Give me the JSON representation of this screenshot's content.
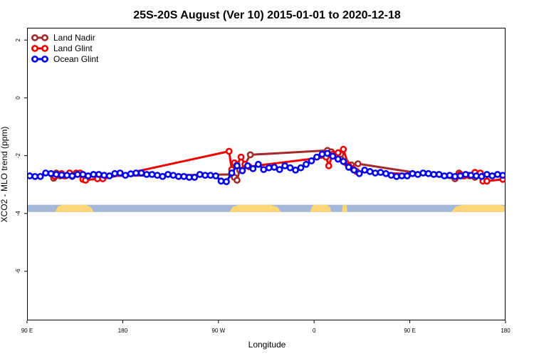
{
  "chart_data": {
    "type": "line",
    "title": "25S-20S August (Ver 10)   2015-01-01 to 2020-12-18",
    "xlabel": "Longitude",
    "ylabel": "XCO2 - MLO trend (ppm)",
    "xlim": [
      90,
      450
    ],
    "ylim": [
      -7.7,
      2.4
    ],
    "x_ticks": [
      {
        "value": 90,
        "label": "90 E"
      },
      {
        "value": 162,
        "label": "180"
      },
      {
        "value": 234,
        "label": "90 W"
      },
      {
        "value": 306,
        "label": "0"
      },
      {
        "value": 378,
        "label": "90 E"
      },
      {
        "value": 450,
        "label": "180"
      }
    ],
    "y_ticks": [
      {
        "value": 2,
        "label": "2"
      },
      {
        "value": 0,
        "label": "0"
      },
      {
        "value": -2,
        "label": "-2"
      },
      {
        "value": -4,
        "label": "-4"
      },
      {
        "value": -6,
        "label": "-6"
      }
    ],
    "grid": false,
    "legend_position": "top-left",
    "land_band": {
      "y_range": [
        -3.95,
        -3.7
      ],
      "ocean_color": "#a3b8d8",
      "land_color": "#ffd675",
      "land_segments": [
        [
          111,
          140
        ],
        [
          242,
          281
        ],
        [
          303,
          319
        ],
        [
          327,
          331
        ],
        [
          409,
          455
        ]
      ]
    },
    "series": [
      {
        "name": "Land Nadir",
        "color": "#a52a2a",
        "points": [
          [
            110,
            -2.78
          ],
          [
            112,
            -2.6
          ],
          [
            115,
            -2.7
          ],
          [
            118,
            -2.7
          ],
          [
            124,
            -2.72
          ],
          [
            244,
            -2.65
          ],
          [
            246,
            -2.75
          ],
          [
            248,
            -2.85
          ],
          [
            250,
            -2.5
          ],
          [
            254,
            -2.3
          ],
          [
            258,
            -1.97
          ],
          [
            316,
            -1.82
          ],
          [
            319,
            -1.87
          ],
          [
            323,
            -2.02
          ],
          [
            326,
            -1.95
          ],
          [
            330,
            -2.25
          ],
          [
            334,
            -2.32
          ],
          [
            339,
            -2.28
          ],
          [
            412,
            -2.8
          ],
          [
            415,
            -2.6
          ],
          [
            418,
            -2.7
          ],
          [
            422,
            -2.68
          ],
          [
            427,
            -2.75
          ]
        ]
      },
      {
        "name": "Land Glint",
        "color": "#ee0000",
        "points": [
          [
            111,
            -2.72
          ],
          [
            113,
            -2.67
          ],
          [
            116,
            -2.62
          ],
          [
            119,
            -2.7
          ],
          [
            122,
            -2.6
          ],
          [
            127,
            -2.6
          ],
          [
            130,
            -2.6
          ],
          [
            132,
            -2.82
          ],
          [
            134,
            -2.85
          ],
          [
            143,
            -2.8
          ],
          [
            147,
            -2.8
          ],
          [
            242,
            -1.85
          ],
          [
            244,
            -2.48
          ],
          [
            246,
            -2.25
          ],
          [
            248,
            -2.32
          ],
          [
            251,
            -2.05
          ],
          [
            254,
            -2.3
          ],
          [
            257,
            -2.38
          ],
          [
            315,
            -2.05
          ],
          [
            317,
            -2.35
          ],
          [
            320,
            -1.95
          ],
          [
            324,
            -1.9
          ],
          [
            328,
            -1.78
          ],
          [
            332,
            -2.35
          ],
          [
            335,
            -2.45
          ],
          [
            338,
            -2.55
          ],
          [
            413,
            -2.72
          ],
          [
            416,
            -2.65
          ],
          [
            419,
            -2.7
          ],
          [
            423,
            -2.7
          ],
          [
            427,
            -2.58
          ],
          [
            431,
            -2.6
          ],
          [
            433,
            -2.88
          ],
          [
            436,
            -2.88
          ],
          [
            448,
            -2.82
          ]
        ]
      },
      {
        "name": "Ocean Glint",
        "color": "#0000ee",
        "points": [
          [
            92,
            -2.7
          ],
          [
            96,
            -2.72
          ],
          [
            100,
            -2.72
          ],
          [
            104,
            -2.6
          ],
          [
            108,
            -2.62
          ],
          [
            112,
            -2.65
          ],
          [
            116,
            -2.67
          ],
          [
            120,
            -2.68
          ],
          [
            124,
            -2.7
          ],
          [
            128,
            -2.65
          ],
          [
            132,
            -2.65
          ],
          [
            136,
            -2.7
          ],
          [
            140,
            -2.65
          ],
          [
            144,
            -2.65
          ],
          [
            148,
            -2.68
          ],
          [
            152,
            -2.7
          ],
          [
            156,
            -2.62
          ],
          [
            160,
            -2.6
          ],
          [
            164,
            -2.68
          ],
          [
            168,
            -2.63
          ],
          [
            172,
            -2.6
          ],
          [
            176,
            -2.6
          ],
          [
            180,
            -2.65
          ],
          [
            184,
            -2.65
          ],
          [
            188,
            -2.68
          ],
          [
            192,
            -2.72
          ],
          [
            196,
            -2.65
          ],
          [
            200,
            -2.68
          ],
          [
            204,
            -2.72
          ],
          [
            208,
            -2.72
          ],
          [
            212,
            -2.75
          ],
          [
            216,
            -2.75
          ],
          [
            220,
            -2.65
          ],
          [
            224,
            -2.68
          ],
          [
            228,
            -2.68
          ],
          [
            232,
            -2.7
          ],
          [
            236,
            -2.88
          ],
          [
            240,
            -2.9
          ],
          [
            244,
            -2.6
          ],
          [
            248,
            -2.35
          ],
          [
            252,
            -2.52
          ],
          [
            256,
            -2.35
          ],
          [
            260,
            -2.45
          ],
          [
            264,
            -2.3
          ],
          [
            268,
            -2.48
          ],
          [
            272,
            -2.42
          ],
          [
            276,
            -2.4
          ],
          [
            280,
            -2.48
          ],
          [
            284,
            -2.35
          ],
          [
            288,
            -2.42
          ],
          [
            292,
            -2.5
          ],
          [
            296,
            -2.42
          ],
          [
            300,
            -2.3
          ],
          [
            304,
            -2.18
          ],
          [
            308,
            -2.05
          ],
          [
            312,
            -1.95
          ],
          [
            316,
            -1.92
          ],
          [
            320,
            -2.02
          ],
          [
            324,
            -2.12
          ],
          [
            328,
            -2.2
          ],
          [
            332,
            -2.4
          ],
          [
            336,
            -2.5
          ],
          [
            340,
            -2.62
          ],
          [
            344,
            -2.5
          ],
          [
            348,
            -2.55
          ],
          [
            352,
            -2.6
          ],
          [
            356,
            -2.58
          ],
          [
            360,
            -2.62
          ],
          [
            364,
            -2.68
          ],
          [
            368,
            -2.72
          ],
          [
            372,
            -2.7
          ],
          [
            376,
            -2.7
          ],
          [
            380,
            -2.62
          ],
          [
            384,
            -2.65
          ],
          [
            388,
            -2.6
          ],
          [
            392,
            -2.62
          ],
          [
            396,
            -2.65
          ],
          [
            400,
            -2.65
          ],
          [
            404,
            -2.7
          ],
          [
            408,
            -2.68
          ],
          [
            412,
            -2.72
          ],
          [
            416,
            -2.7
          ],
          [
            420,
            -2.65
          ],
          [
            424,
            -2.68
          ],
          [
            428,
            -2.7
          ],
          [
            432,
            -2.72
          ],
          [
            436,
            -2.65
          ],
          [
            440,
            -2.7
          ],
          [
            444,
            -2.65
          ],
          [
            448,
            -2.68
          ],
          [
            452,
            -2.62
          ]
        ]
      }
    ]
  }
}
